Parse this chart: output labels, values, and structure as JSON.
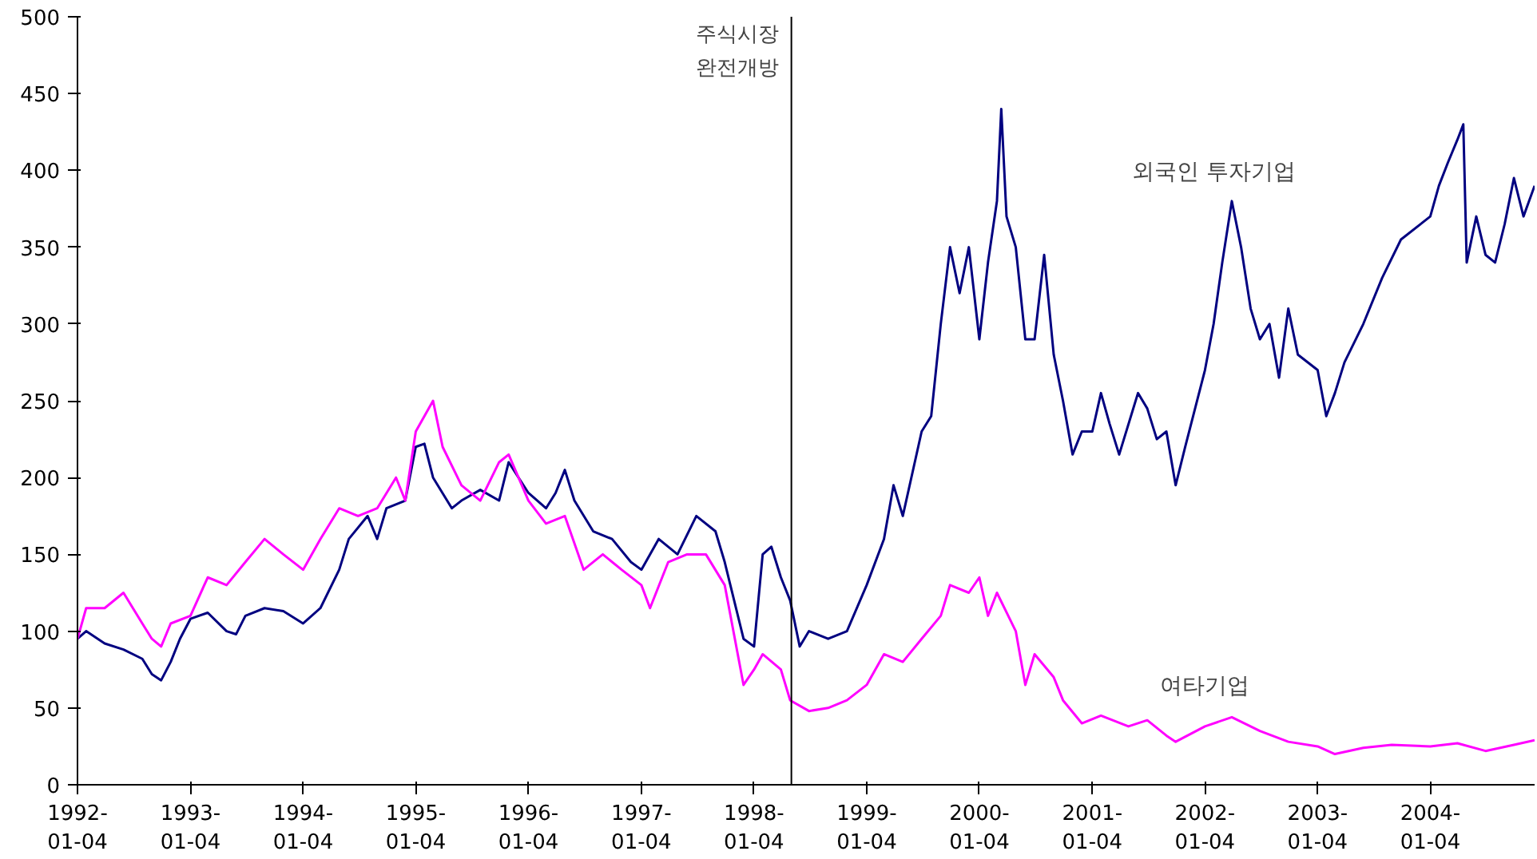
{
  "chart_data": {
    "type": "line",
    "xlim": [
      "1992-01-04",
      "2004-12-07"
    ],
    "ylim": [
      0,
      500
    ],
    "yticks": [
      0,
      50,
      100,
      150,
      200,
      250,
      300,
      350,
      400,
      450,
      500
    ],
    "xticks": [
      {
        "value": "1992-01-04",
        "label": "1992-\n01-04"
      },
      {
        "value": "1993-01-04",
        "label": "1993-\n01-04"
      },
      {
        "value": "1994-01-04",
        "label": "1994-\n01-04"
      },
      {
        "value": "1995-01-04",
        "label": "1995-\n01-04"
      },
      {
        "value": "1996-01-04",
        "label": "1996-\n01-04"
      },
      {
        "value": "1997-01-04",
        "label": "1997-\n01-04"
      },
      {
        "value": "1998-01-04",
        "label": "1998-\n01-04"
      },
      {
        "value": "1999-01-04",
        "label": "1999-\n01-04"
      },
      {
        "value": "2000-01-04",
        "label": "2000-\n01-04"
      },
      {
        "value": "2001-01-04",
        "label": "2001-\n01-04"
      },
      {
        "value": "2002-01-04",
        "label": "2002-\n01-04"
      },
      {
        "value": "2003-01-04",
        "label": "2003-\n01-04"
      },
      {
        "value": "2004-01-04",
        "label": "2004-\n01-04"
      }
    ],
    "grid": false,
    "marker": "none",
    "line_style": "solid",
    "ref_lines": [
      {
        "axis": "x",
        "value": "1998-05-05",
        "label": "주식시장\n완전개방",
        "color": "#000000"
      }
    ],
    "series": [
      {
        "name": "외국인 투자기업",
        "color": "#000080",
        "x": [
          "1992-01-04",
          "1992-02-01",
          "1992-04-01",
          "1992-06-01",
          "1992-08-01",
          "1992-09-01",
          "1992-10-01",
          "1992-11-01",
          "1992-12-01",
          "1993-01-04",
          "1993-03-01",
          "1993-05-01",
          "1993-06-01",
          "1993-07-01",
          "1993-09-01",
          "1993-11-01",
          "1994-01-04",
          "1994-03-01",
          "1994-05-01",
          "1994-06-01",
          "1994-08-01",
          "1994-09-01",
          "1994-10-01",
          "1994-12-01",
          "1995-01-04",
          "1995-02-01",
          "1995-03-01",
          "1995-05-01",
          "1995-06-01",
          "1995-08-01",
          "1995-10-01",
          "1995-11-01",
          "1996-01-04",
          "1996-03-01",
          "1996-04-01",
          "1996-05-01",
          "1996-06-01",
          "1996-08-01",
          "1996-10-01",
          "1996-12-01",
          "1997-01-04",
          "1997-03-01",
          "1997-05-01",
          "1997-07-01",
          "1997-09-01",
          "1997-10-01",
          "1997-12-01",
          "1998-01-04",
          "1998-02-01",
          "1998-03-01",
          "1998-04-01",
          "1998-05-01",
          "1998-06-01",
          "1998-07-01",
          "1998-09-01",
          "1998-11-01",
          "1999-01-04",
          "1999-03-01",
          "1999-04-01",
          "1999-05-01",
          "1999-07-01",
          "1999-08-01",
          "1999-09-01",
          "1999-10-01",
          "1999-11-01",
          "1999-12-01",
          "2000-01-04",
          "2000-02-01",
          "2000-03-01",
          "2000-03-15",
          "2000-04-01",
          "2000-05-01",
          "2000-06-01",
          "2000-07-01",
          "2000-08-01",
          "2000-09-01",
          "2000-10-01",
          "2000-11-01",
          "2000-12-01",
          "2001-01-04",
          "2001-02-01",
          "2001-03-01",
          "2001-04-01",
          "2001-06-01",
          "2001-07-01",
          "2001-08-01",
          "2001-09-01",
          "2001-10-01",
          "2001-11-01",
          "2002-01-04",
          "2002-02-01",
          "2002-03-01",
          "2002-04-01",
          "2002-05-01",
          "2002-06-01",
          "2002-07-01",
          "2002-08-01",
          "2002-09-01",
          "2002-10-01",
          "2002-11-01",
          "2003-01-04",
          "2003-02-01",
          "2003-03-01",
          "2003-04-01",
          "2003-06-01",
          "2003-08-01",
          "2003-10-01",
          "2004-01-04",
          "2004-02-01",
          "2004-03-01",
          "2004-04-01",
          "2004-04-20",
          "2004-05-01",
          "2004-06-01",
          "2004-07-01",
          "2004-08-01",
          "2004-09-01",
          "2004-10-01",
          "2004-11-01",
          "2004-12-07"
        ],
        "values": [
          95,
          100,
          92,
          88,
          82,
          72,
          68,
          80,
          95,
          108,
          112,
          100,
          98,
          110,
          115,
          113,
          105,
          115,
          140,
          160,
          175,
          160,
          180,
          185,
          220,
          222,
          200,
          180,
          185,
          192,
          185,
          210,
          190,
          180,
          190,
          205,
          185,
          165,
          160,
          145,
          140,
          160,
          150,
          175,
          165,
          145,
          95,
          90,
          150,
          155,
          135,
          120,
          90,
          100,
          95,
          100,
          130,
          160,
          195,
          175,
          230,
          240,
          300,
          350,
          320,
          350,
          290,
          340,
          380,
          440,
          370,
          350,
          290,
          290,
          345,
          280,
          250,
          215,
          230,
          230,
          255,
          235,
          215,
          255,
          245,
          225,
          230,
          195,
          220,
          270,
          300,
          340,
          380,
          350,
          310,
          290,
          300,
          265,
          310,
          280,
          270,
          240,
          255,
          275,
          300,
          330,
          355,
          370,
          390,
          405,
          420,
          430,
          340,
          370,
          345,
          340,
          365,
          395,
          370,
          390
        ]
      },
      {
        "name": "여타기업",
        "color": "#ff00ff",
        "x": [
          "1992-01-04",
          "1992-02-01",
          "1992-04-01",
          "1992-06-01",
          "1992-08-01",
          "1992-09-01",
          "1992-10-01",
          "1992-11-01",
          "1993-01-04",
          "1993-03-01",
          "1993-05-01",
          "1993-07-01",
          "1993-09-01",
          "1993-11-01",
          "1994-01-04",
          "1994-03-01",
          "1994-05-01",
          "1994-07-01",
          "1994-09-01",
          "1994-11-01",
          "1994-12-01",
          "1995-01-04",
          "1995-02-01",
          "1995-03-01",
          "1995-04-01",
          "1995-06-01",
          "1995-08-01",
          "1995-10-01",
          "1995-11-01",
          "1996-01-04",
          "1996-03-01",
          "1996-05-01",
          "1996-07-01",
          "1996-09-01",
          "1996-11-01",
          "1997-01-04",
          "1997-02-01",
          "1997-04-01",
          "1997-06-01",
          "1997-08-01",
          "1997-10-01",
          "1997-12-01",
          "1998-01-04",
          "1998-02-01",
          "1998-04-01",
          "1998-05-01",
          "1998-07-01",
          "1998-09-01",
          "1998-11-01",
          "1999-01-04",
          "1999-03-01",
          "1999-05-01",
          "1999-07-01",
          "1999-09-01",
          "1999-10-01",
          "1999-12-01",
          "2000-01-04",
          "2000-02-01",
          "2000-03-01",
          "2000-05-01",
          "2000-06-01",
          "2000-07-01",
          "2000-09-01",
          "2000-10-01",
          "2000-12-01",
          "2001-02-01",
          "2001-05-01",
          "2001-07-01",
          "2001-09-01",
          "2001-10-01",
          "2002-01-04",
          "2002-04-01",
          "2002-07-01",
          "2002-10-01",
          "2003-01-04",
          "2003-03-01",
          "2003-06-01",
          "2003-09-01",
          "2004-01-04",
          "2004-04-01",
          "2004-07-01",
          "2004-10-01",
          "2004-12-07"
        ],
        "values": [
          95,
          115,
          115,
          125,
          105,
          95,
          90,
          105,
          110,
          135,
          130,
          145,
          160,
          150,
          140,
          160,
          180,
          175,
          180,
          200,
          185,
          230,
          240,
          250,
          220,
          195,
          185,
          210,
          215,
          185,
          170,
          175,
          140,
          150,
          140,
          130,
          115,
          145,
          150,
          150,
          130,
          65,
          75,
          85,
          75,
          55,
          48,
          50,
          55,
          65,
          85,
          80,
          95,
          110,
          130,
          125,
          135,
          110,
          125,
          100,
          65,
          85,
          70,
          55,
          40,
          45,
          38,
          42,
          32,
          28,
          38,
          44,
          35,
          28,
          25,
          20,
          24,
          26,
          25,
          27,
          22,
          26,
          29
        ]
      }
    ]
  }
}
